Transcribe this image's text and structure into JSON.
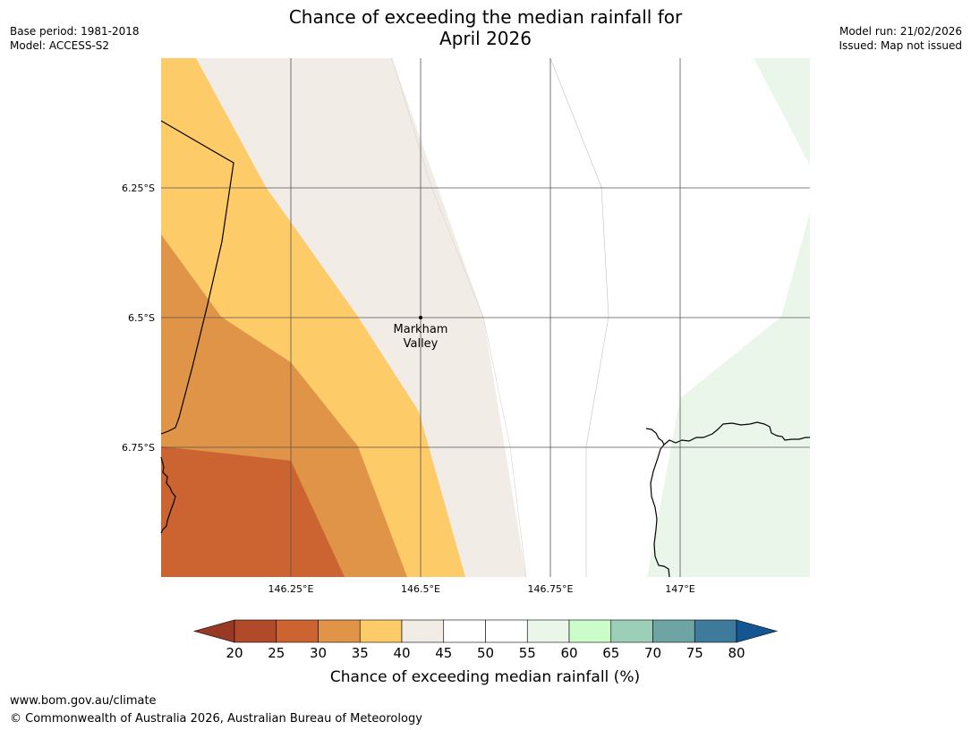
{
  "header": {
    "title_line1": "Chance of exceeding the median rainfall for",
    "title_line2": "April 2026",
    "base_period": "Base period: 1981-2018",
    "model": "Model: ACCESS-S2",
    "model_run": "Model run: 21/02/2026",
    "issued": "Issued: Map not issued"
  },
  "map": {
    "place": {
      "name_line1": "Markham",
      "name_line2": "Valley",
      "lon": 146.5,
      "lat": -6.5
    },
    "lat_ticks": [
      {
        "lat": -6.25,
        "label": "6.25°S"
      },
      {
        "lat": -6.5,
        "label": "6.5°S"
      },
      {
        "lat": -6.75,
        "label": "6.75°S"
      }
    ],
    "lon_ticks": [
      {
        "lon": 146.25,
        "label": "146.25°E"
      },
      {
        "lon": 146.5,
        "label": "146.5°E"
      },
      {
        "lon": 146.75,
        "label": "146.75°E"
      },
      {
        "lon": 147.0,
        "label": "147°E"
      }
    ],
    "extent": {
      "lon_min": 146.0,
      "lon_max": 147.25,
      "lat_max": -6.0,
      "lat_min": -7.0
    },
    "colors": {
      "c20_25": "#b04a28",
      "c25_30": "#cb6430",
      "c30_35": "#e09447",
      "c35_40": "#fecb69",
      "c40_45": "#f1ece6",
      "c45_55": "#ffffff",
      "c55_60": "#ebf6ea",
      "c60_65": "#ccfcc9",
      "c65_70": "#9dcfb8",
      "c70_75": "#6ea4a4",
      "c75_80": "#3e7a9b",
      "c80_up": "#145692",
      "c_below20": "#983926",
      "grid": "#555555",
      "coast": "#000000"
    }
  },
  "colorbar": {
    "tick_labels": [
      "20",
      "25",
      "30",
      "35",
      "40",
      "45",
      "50",
      "55",
      "60",
      "65",
      "70",
      "75",
      "80"
    ],
    "label": "Chance of exceeding median rainfall (%)"
  },
  "footer": {
    "site": "www.bom.gov.au/climate",
    "copyright": "© Commonwealth of Australia 2026, Australian Bureau of Meteorology"
  }
}
